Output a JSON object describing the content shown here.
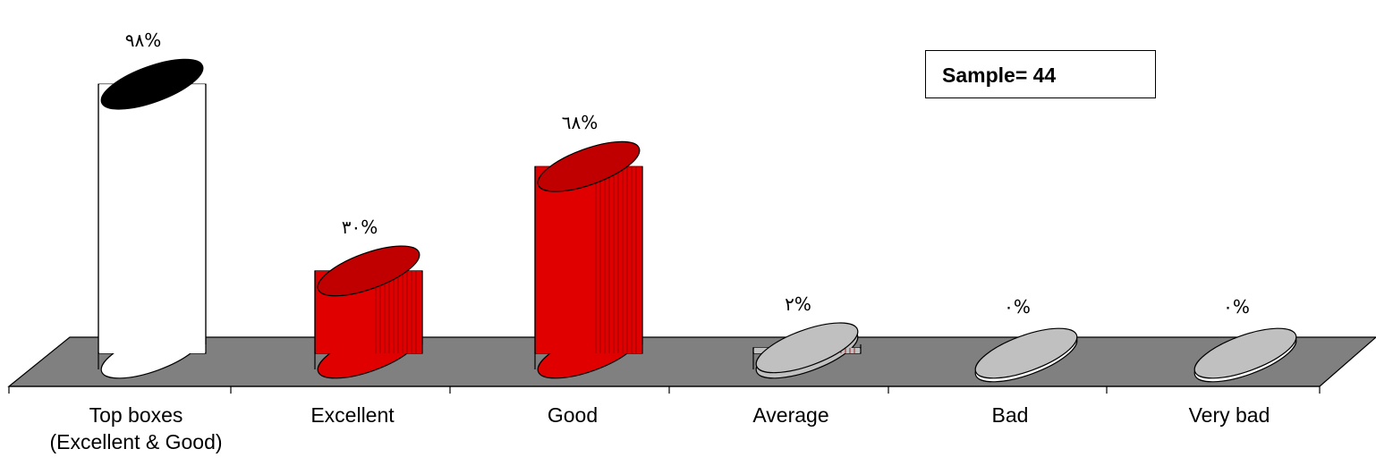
{
  "chart_data": {
    "type": "bar",
    "style": "3d-cylinder",
    "categories": [
      "Top    boxes\n(Excellent & Good)",
      "Excellent",
      "Good",
      "Average",
      "Bad",
      "Very bad"
    ],
    "values": [
      98,
      30,
      68,
      2,
      0,
      0
    ],
    "value_labels": [
      "٩٨%",
      "٣٠%",
      "٦٨%",
      "٢%",
      "٠%",
      "٠%"
    ],
    "bar_colors": [
      "#ffffff",
      "#e00000",
      "#e00000",
      "#c0c0c0",
      "#c0c0c0",
      "#c0c0c0"
    ],
    "top_colors": [
      "#000000",
      "#c00000",
      "#c00000",
      "#c0c0c0",
      "#c0c0c0",
      "#c0c0c0"
    ],
    "floor_color": "#808080",
    "ylim": [
      0,
      100
    ],
    "grid": false
  },
  "annotation": {
    "sample": "Sample= 44"
  }
}
